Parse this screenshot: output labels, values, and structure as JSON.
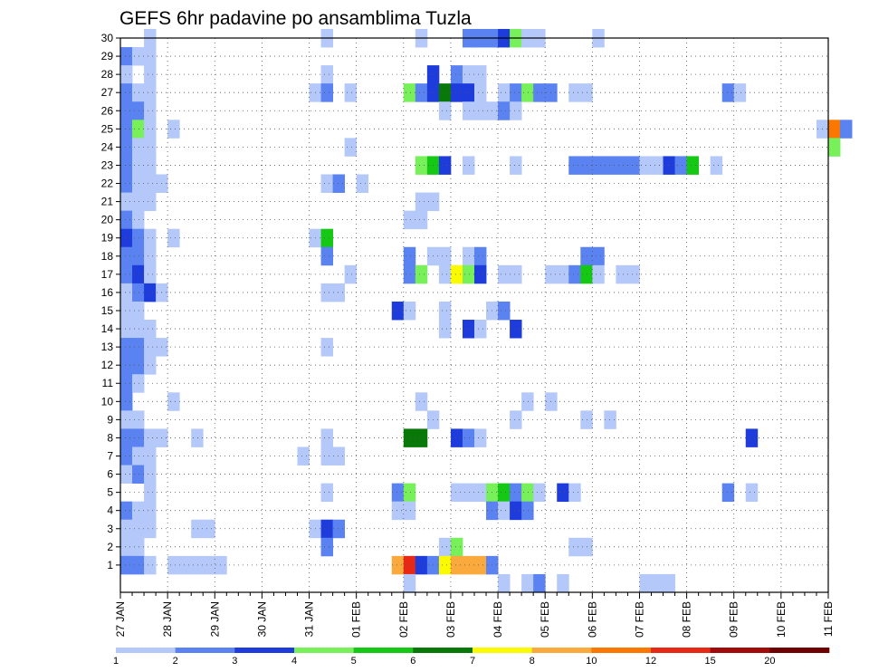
{
  "chart_data": {
    "type": "heatmap",
    "title": "GEFS 6hr padavine po ansamblima Tuzla",
    "x_tick_labels": [
      "27 JAN",
      "28 JAN",
      "29 JAN",
      "30 JAN",
      "31 JAN",
      "01 FEB",
      "02 FEB",
      "03 FEB",
      "04 FEB",
      "05 FEB",
      "06 FEB",
      "07 FEB",
      "08 FEB",
      "09 FEB",
      "10 FEB",
      "11 FEB"
    ],
    "y_tick_labels": [
      "1",
      "2",
      "3",
      "4",
      "5",
      "6",
      "7",
      "8",
      "9",
      "10",
      "11",
      "12",
      "13",
      "14",
      "15",
      "16",
      "17",
      "18",
      "19",
      "20",
      "21",
      "22",
      "23",
      "24",
      "25",
      "26",
      "27",
      "28",
      "29",
      "30"
    ],
    "x_range": [
      0,
      15
    ],
    "y_range": [
      0,
      30
    ],
    "steps_per_day": 4,
    "grid": true,
    "colorbar": {
      "labels": [
        "1",
        "2",
        "3",
        "4",
        "5",
        "6",
        "7",
        "8",
        "10",
        "12",
        "15",
        "20"
      ],
      "colors": [
        "#b4c8fa",
        "#5a82f0",
        "#1e3cdc",
        "#78f05a",
        "#14c814",
        "#087808",
        "#fafa00",
        "#faaa3c",
        "#fa7800",
        "#e62814",
        "#a00a0a",
        "#6e0000"
      ]
    },
    "ranges": [
      [
        30,
        0.5,
        0.75,
        1
      ],
      [
        30,
        4.25,
        4.5,
        1
      ],
      [
        30,
        6.25,
        6.5,
        1
      ],
      [
        30,
        7.25,
        7.5,
        2
      ],
      [
        30,
        7.5,
        8.0,
        2
      ],
      [
        30,
        8.0,
        8.25,
        3
      ],
      [
        30,
        8.25,
        8.5,
        4
      ],
      [
        30,
        8.5,
        9.0,
        1
      ],
      [
        30,
        10.0,
        10.25,
        1
      ],
      [
        29,
        0.0,
        0.25,
        2
      ],
      [
        29,
        0.25,
        0.75,
        1
      ],
      [
        28,
        0.0,
        0.25,
        1
      ],
      [
        28,
        0.5,
        0.75,
        1
      ],
      [
        28,
        4.25,
        4.5,
        1
      ],
      [
        28,
        6.5,
        6.75,
        3
      ],
      [
        28,
        7.0,
        7.25,
        2
      ],
      [
        28,
        7.25,
        7.75,
        1
      ],
      [
        27,
        0.0,
        0.25,
        2
      ],
      [
        27,
        0.25,
        0.75,
        1
      ],
      [
        27,
        4.0,
        4.25,
        1
      ],
      [
        27,
        4.25,
        4.5,
        2
      ],
      [
        27,
        4.75,
        5.0,
        1
      ],
      [
        27,
        6.0,
        6.25,
        4
      ],
      [
        27,
        6.25,
        6.5,
        2
      ],
      [
        27,
        6.5,
        6.75,
        3
      ],
      [
        27,
        6.75,
        7.0,
        6
      ],
      [
        27,
        7.0,
        7.5,
        3
      ],
      [
        27,
        7.5,
        7.75,
        1
      ],
      [
        27,
        8.0,
        8.25,
        1
      ],
      [
        27,
        8.25,
        8.5,
        2
      ],
      [
        27,
        8.5,
        8.75,
        4
      ],
      [
        27,
        8.75,
        9.25,
        2
      ],
      [
        27,
        9.5,
        10.0,
        1
      ],
      [
        27,
        12.75,
        13.0,
        2
      ],
      [
        27,
        13.0,
        13.25,
        1
      ],
      [
        26,
        0.0,
        0.5,
        2
      ],
      [
        26,
        0.5,
        0.75,
        1
      ],
      [
        26,
        6.75,
        7.0,
        1
      ],
      [
        26,
        7.25,
        8.0,
        1
      ],
      [
        26,
        8.0,
        8.25,
        2
      ],
      [
        26,
        8.25,
        8.5,
        1
      ],
      [
        25,
        0.0,
        0.25,
        2
      ],
      [
        25,
        0.25,
        0.5,
        4
      ],
      [
        25,
        0.5,
        0.75,
        1
      ],
      [
        25,
        1.0,
        1.25,
        1
      ],
      [
        25,
        14.75,
        15.0,
        1
      ],
      [
        25,
        15.0,
        15.25,
        9
      ],
      [
        25,
        15.25,
        15.5,
        2
      ],
      [
        24,
        0.0,
        0.25,
        2
      ],
      [
        24,
        0.25,
        0.75,
        1
      ],
      [
        24,
        4.75,
        5.0,
        1
      ],
      [
        24,
        15.0,
        15.25,
        4
      ],
      [
        23,
        0.0,
        0.25,
        2
      ],
      [
        23,
        0.25,
        0.75,
        1
      ],
      [
        23,
        6.25,
        6.5,
        4
      ],
      [
        23,
        6.5,
        6.75,
        5
      ],
      [
        23,
        6.75,
        7.0,
        3
      ],
      [
        23,
        7.25,
        7.5,
        1
      ],
      [
        23,
        8.25,
        8.5,
        1
      ],
      [
        23,
        9.5,
        11.0,
        2
      ],
      [
        23,
        11.0,
        11.5,
        1
      ],
      [
        23,
        11.5,
        11.75,
        3
      ],
      [
        23,
        11.75,
        12.0,
        2
      ],
      [
        23,
        12.0,
        12.25,
        5
      ],
      [
        23,
        12.5,
        12.75,
        1
      ],
      [
        22,
        0.0,
        0.25,
        2
      ],
      [
        22,
        0.25,
        1.0,
        1
      ],
      [
        22,
        4.25,
        4.5,
        1
      ],
      [
        22,
        4.5,
        4.75,
        2
      ],
      [
        22,
        5.0,
        5.25,
        1
      ],
      [
        21,
        0.0,
        0.75,
        1
      ],
      [
        21,
        6.25,
        6.75,
        1
      ],
      [
        20,
        0.0,
        0.25,
        2
      ],
      [
        20,
        0.25,
        0.5,
        1
      ],
      [
        20,
        6.0,
        6.5,
        1
      ],
      [
        19,
        0.0,
        0.25,
        3
      ],
      [
        19,
        0.25,
        0.5,
        2
      ],
      [
        19,
        0.5,
        0.75,
        1
      ],
      [
        19,
        1.0,
        1.25,
        1
      ],
      [
        19,
        4.0,
        4.25,
        1
      ],
      [
        19,
        4.25,
        4.5,
        5
      ],
      [
        18,
        0.0,
        0.5,
        2
      ],
      [
        18,
        0.5,
        0.75,
        1
      ],
      [
        18,
        4.25,
        4.5,
        2
      ],
      [
        18,
        6.0,
        6.25,
        2
      ],
      [
        18,
        6.5,
        7.0,
        1
      ],
      [
        18,
        7.25,
        7.5,
        1
      ],
      [
        18,
        7.5,
        7.75,
        2
      ],
      [
        18,
        9.75,
        10.25,
        2
      ],
      [
        17,
        0.0,
        0.25,
        2
      ],
      [
        17,
        0.25,
        0.5,
        3
      ],
      [
        17,
        0.5,
        0.75,
        1
      ],
      [
        17,
        4.75,
        5.0,
        1
      ],
      [
        17,
        6.0,
        6.25,
        2
      ],
      [
        17,
        6.25,
        6.5,
        4
      ],
      [
        17,
        6.75,
        7.0,
        1
      ],
      [
        17,
        7.0,
        7.25,
        7
      ],
      [
        17,
        7.25,
        7.5,
        4
      ],
      [
        17,
        7.5,
        7.75,
        3
      ],
      [
        17,
        8.0,
        8.5,
        1
      ],
      [
        17,
        9.0,
        9.5,
        1
      ],
      [
        17,
        9.5,
        9.75,
        2
      ],
      [
        17,
        9.75,
        10.0,
        5
      ],
      [
        17,
        10.0,
        10.25,
        1
      ],
      [
        17,
        10.5,
        11.0,
        1
      ],
      [
        16,
        0.0,
        0.25,
        1
      ],
      [
        16,
        0.25,
        0.5,
        2
      ],
      [
        16,
        0.5,
        0.75,
        3
      ],
      [
        16,
        0.75,
        1.0,
        1
      ],
      [
        16,
        4.25,
        4.75,
        1
      ],
      [
        15,
        0.0,
        0.5,
        1
      ],
      [
        15,
        5.75,
        6.0,
        3
      ],
      [
        15,
        6.0,
        6.25,
        1
      ],
      [
        15,
        6.75,
        7.0,
        1
      ],
      [
        15,
        7.75,
        8.0,
        1
      ],
      [
        15,
        8.0,
        8.25,
        2
      ],
      [
        14,
        0.0,
        0.75,
        1
      ],
      [
        14,
        6.75,
        7.0,
        1
      ],
      [
        14,
        7.25,
        7.5,
        3
      ],
      [
        14,
        7.5,
        7.75,
        1
      ],
      [
        14,
        8.25,
        8.5,
        3
      ],
      [
        13,
        0.0,
        0.5,
        2
      ],
      [
        13,
        0.5,
        1.0,
        1
      ],
      [
        13,
        4.25,
        4.5,
        1
      ],
      [
        12,
        0.0,
        0.5,
        2
      ],
      [
        12,
        0.5,
        0.75,
        1
      ],
      [
        11,
        0.0,
        0.25,
        2
      ],
      [
        11,
        0.25,
        0.5,
        1
      ],
      [
        10,
        0.0,
        0.25,
        2
      ],
      [
        10,
        1.0,
        1.25,
        1
      ],
      [
        10,
        6.25,
        6.5,
        1
      ],
      [
        10,
        8.5,
        8.75,
        1
      ],
      [
        10,
        9.0,
        9.25,
        1
      ],
      [
        9,
        0.0,
        0.5,
        1
      ],
      [
        9,
        6.5,
        6.75,
        1
      ],
      [
        9,
        8.25,
        8.5,
        1
      ],
      [
        9,
        9.75,
        10.0,
        1
      ],
      [
        9,
        10.25,
        10.5,
        1
      ],
      [
        8,
        0.0,
        0.5,
        2
      ],
      [
        8,
        0.5,
        1.0,
        1
      ],
      [
        8,
        1.5,
        1.75,
        1
      ],
      [
        8,
        4.25,
        4.5,
        1
      ],
      [
        8,
        6.0,
        6.5,
        6
      ],
      [
        8,
        7.0,
        7.25,
        3
      ],
      [
        8,
        7.25,
        7.5,
        2
      ],
      [
        8,
        7.5,
        7.75,
        1
      ],
      [
        8,
        13.25,
        13.5,
        3
      ],
      [
        7,
        0.0,
        0.25,
        2
      ],
      [
        7,
        0.25,
        0.75,
        1
      ],
      [
        7,
        3.75,
        4.0,
        1
      ],
      [
        7,
        4.25,
        4.75,
        1
      ],
      [
        6,
        0.0,
        0.25,
        1
      ],
      [
        6,
        0.25,
        0.5,
        2
      ],
      [
        6,
        0.5,
        0.75,
        1
      ],
      [
        5,
        0.5,
        0.75,
        1
      ],
      [
        5,
        4.25,
        4.5,
        1
      ],
      [
        5,
        5.75,
        6.0,
        2
      ],
      [
        5,
        6.0,
        6.25,
        4
      ],
      [
        5,
        7.0,
        7.75,
        1
      ],
      [
        5,
        7.75,
        8.0,
        4
      ],
      [
        5,
        8.0,
        8.25,
        5
      ],
      [
        5,
        8.25,
        8.5,
        2
      ],
      [
        5,
        8.5,
        8.75,
        4
      ],
      [
        5,
        8.75,
        9.0,
        1
      ],
      [
        5,
        9.25,
        9.5,
        3
      ],
      [
        5,
        9.5,
        9.75,
        1
      ],
      [
        5,
        12.75,
        13.0,
        2
      ],
      [
        5,
        13.25,
        13.5,
        1
      ],
      [
        4,
        0.0,
        0.25,
        2
      ],
      [
        4,
        0.25,
        0.75,
        1
      ],
      [
        4,
        5.75,
        6.25,
        1
      ],
      [
        4,
        7.75,
        8.0,
        2
      ],
      [
        4,
        8.0,
        8.25,
        1
      ],
      [
        4,
        8.25,
        8.5,
        3
      ],
      [
        4,
        8.5,
        8.75,
        2
      ],
      [
        3,
        0.0,
        0.75,
        1
      ],
      [
        3,
        1.5,
        2.0,
        1
      ],
      [
        3,
        4.0,
        4.25,
        1
      ],
      [
        3,
        4.25,
        4.5,
        3
      ],
      [
        3,
        4.5,
        4.75,
        2
      ],
      [
        2,
        0.0,
        0.5,
        1
      ],
      [
        2,
        4.25,
        4.5,
        2
      ],
      [
        2,
        6.75,
        7.0,
        1
      ],
      [
        2,
        7.0,
        7.25,
        4
      ],
      [
        2,
        9.5,
        10.0,
        1
      ],
      [
        1,
        0.0,
        0.5,
        2
      ],
      [
        1,
        0.5,
        0.75,
        1
      ],
      [
        1,
        1.0,
        2.25,
        1
      ],
      [
        1,
        5.75,
        6.0,
        8
      ],
      [
        1,
        6.0,
        6.25,
        10
      ],
      [
        1,
        6.25,
        6.5,
        3
      ],
      [
        1,
        6.5,
        6.75,
        2
      ],
      [
        1,
        6.75,
        7.0,
        7
      ],
      [
        1,
        7.0,
        7.75,
        8
      ],
      [
        1,
        7.75,
        8.0,
        2
      ],
      [
        0,
        6.0,
        6.25,
        1
      ],
      [
        0,
        8.0,
        8.25,
        1
      ],
      [
        0,
        8.5,
        8.75,
        1
      ],
      [
        0,
        8.75,
        9.0,
        2
      ],
      [
        0,
        9.25,
        9.5,
        1
      ],
      [
        0,
        11.0,
        11.75,
        1
      ]
    ]
  }
}
